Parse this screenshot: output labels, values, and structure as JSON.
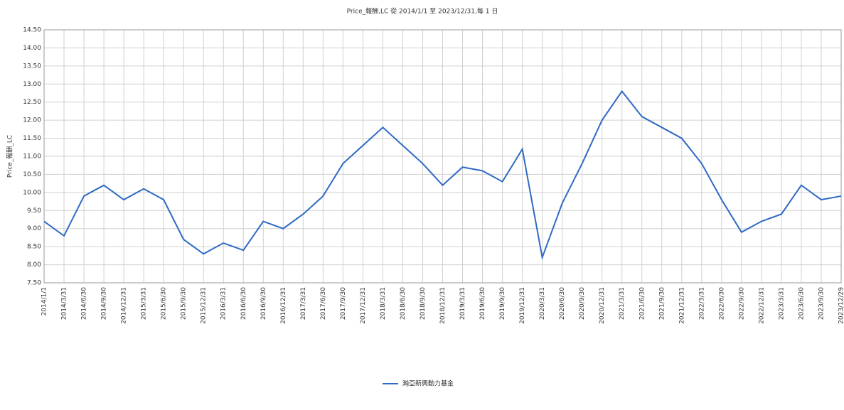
{
  "chart_data": {
    "type": "line",
    "title": "Price_報酬,LC 從 2014/1/1 至 2023/12/31,每 1 日",
    "y_label": "Price_報酬_LC",
    "categories": [
      "2014/1/1",
      "2014/3/31",
      "2014/6/30",
      "2014/9/30",
      "2014/12/31",
      "2015/3/31",
      "2015/6/30",
      "2015/9/30",
      "2015/12/31",
      "2016/3/31",
      "2016/6/30",
      "2016/9/30",
      "2016/12/31",
      "2017/3/31",
      "2017/6/30",
      "2017/9/30",
      "2017/12/31",
      "2018/3/31",
      "2018/6/30",
      "2018/9/30",
      "2018/12/31",
      "2019/3/31",
      "2019/6/30",
      "2019/9/30",
      "2019/12/31",
      "2020/3/31",
      "2020/6/30",
      "2020/9/30",
      "2020/12/31",
      "2021/3/31",
      "2021/6/30",
      "2021/9/30",
      "2021/12/31",
      "2022/3/31",
      "2022/6/30",
      "2022/9/30",
      "2022/12/31",
      "2023/3/31",
      "2023/6/30",
      "2023/9/30",
      "2023/12/29"
    ],
    "series": [
      {
        "name": "瀚亞新興動力基金",
        "color": "#2f6ac4",
        "values": [
          9.2,
          8.8,
          9.9,
          10.2,
          9.8,
          10.1,
          9.8,
          8.7,
          8.3,
          8.6,
          8.4,
          9.2,
          9.0,
          9.4,
          9.9,
          10.8,
          11.3,
          11.8,
          11.3,
          10.8,
          10.2,
          10.7,
          10.6,
          10.3,
          11.2,
          8.2,
          9.7,
          10.8,
          12.0,
          12.8,
          12.1,
          11.8,
          11.5,
          10.8,
          9.8,
          8.9,
          9.2,
          9.4,
          10.2,
          9.8,
          9.9
        ]
      }
    ],
    "ylim": [
      7.5,
      14.5
    ],
    "yticks": [
      {
        "value": 7.5,
        "label": "7.50"
      },
      {
        "value": 8,
        "label": "8.00"
      },
      {
        "value": 8.5,
        "label": "8.50"
      },
      {
        "value": 9,
        "label": "9.00"
      },
      {
        "value": 9.5,
        "label": "9.50"
      },
      {
        "value": 10,
        "label": "10.00"
      },
      {
        "value": 10.5,
        "label": "10.50"
      },
      {
        "value": 11,
        "label": "11.00"
      },
      {
        "value": 11.5,
        "label": "11.50"
      },
      {
        "value": 12,
        "label": "12.00"
      },
      {
        "value": 12.5,
        "label": "12.50"
      },
      {
        "value": 13,
        "label": "13.00"
      },
      {
        "value": 13.5,
        "label": "13.50"
      },
      {
        "value": 14,
        "label": "14.00"
      },
      {
        "value": 14.5,
        "label": "14.50"
      }
    ],
    "grid": true,
    "legend": "bottom"
  }
}
